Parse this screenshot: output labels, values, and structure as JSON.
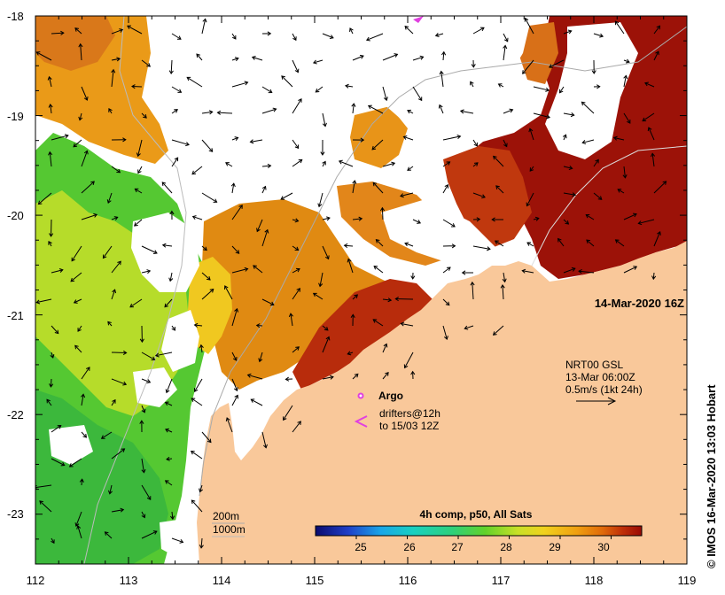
{
  "map": {
    "timestamp": "14-Mar-2020 16Z",
    "credit": "© IMOS 16-Mar-2020 13:03 Hobart",
    "lon_ticks": [
      "112",
      "113",
      "114",
      "115",
      "116",
      "117",
      "118",
      "119"
    ],
    "lat_ticks": [
      "-18",
      "-19",
      "-20",
      "-21",
      "-22",
      "-23"
    ],
    "lon_range": [
      112,
      119
    ],
    "lat_range": [
      -23.5,
      -18
    ],
    "colors": {
      "land": "#f9c89a",
      "no_data": "#ffffff",
      "argo_marker": "#e040e0",
      "drifter_marker": "#e040e0",
      "current_arrow": "#000000"
    }
  },
  "current_legend": {
    "source": "NRT00 GSL",
    "date": "13-Mar 06:00Z",
    "scale": "0.5m/s (1kt 24h)"
  },
  "markers_legend": {
    "argo": "Argo",
    "drifters_line1": "drifters@12h",
    "drifters_line2": "to 15/03 12Z"
  },
  "isobaths": {
    "depth1": "200m",
    "depth2": "1000m"
  },
  "colorbar": {
    "title": "4h comp, p50, All Sats",
    "ticks": [
      "25",
      "26",
      "27",
      "28",
      "29",
      "30"
    ],
    "range": [
      24.2,
      30.6
    ],
    "unit_hint": "SST degC"
  }
}
